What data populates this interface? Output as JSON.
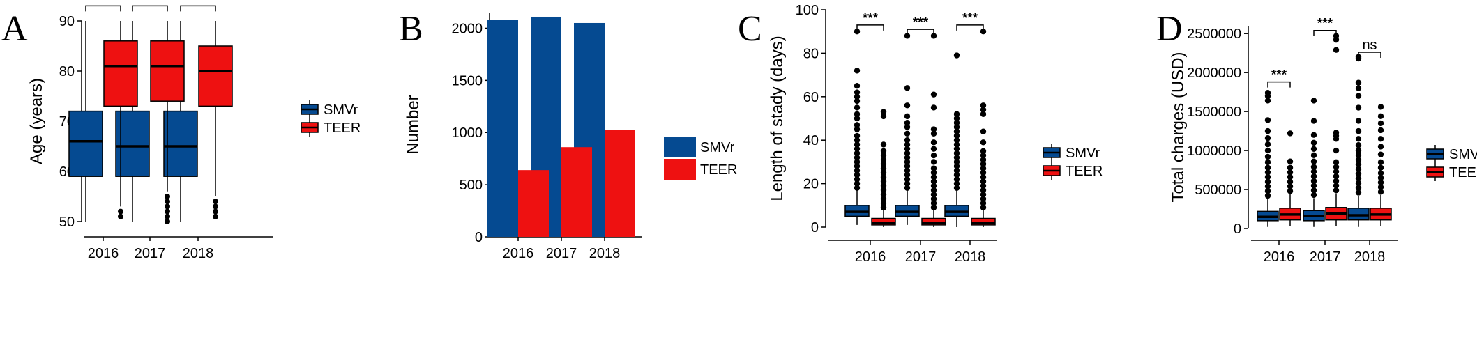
{
  "colors": {
    "SMVr": "#054a91",
    "TEER": "#ee1111"
  },
  "chart_data": [
    {
      "panel": "A",
      "type": "box",
      "ylabel": "Age (years)",
      "ylim": [
        50,
        90
      ],
      "yticks": [
        50,
        60,
        70,
        80,
        90
      ],
      "categories": [
        "2016",
        "2017",
        "2018"
      ],
      "legend": [
        "SMVr",
        "TEER"
      ],
      "series": [
        {
          "name": "SMVr",
          "boxes": [
            {
              "q1": 59,
              "median": 66,
              "q3": 72,
              "low": 50,
              "high": 90,
              "outliers": []
            },
            {
              "q1": 59,
              "median": 65,
              "q3": 72,
              "low": 50,
              "high": 90,
              "outliers": []
            },
            {
              "q1": 59,
              "median": 65,
              "q3": 72,
              "low": 50,
              "high": 90,
              "outliers": []
            }
          ]
        },
        {
          "name": "TEER",
          "boxes": [
            {
              "q1": 73,
              "median": 81,
              "q3": 86,
              "low": 53,
              "high": 90,
              "outliers": [
                51,
                52
              ]
            },
            {
              "q1": 74,
              "median": 81,
              "q3": 86,
              "low": 56,
              "high": 90,
              "outliers": [
                50,
                51,
                52,
                53,
                54,
                55
              ]
            },
            {
              "q1": 73,
              "median": 80,
              "q3": 85,
              "low": 55,
              "high": 90,
              "outliers": [
                51,
                52,
                53,
                54
              ]
            }
          ]
        }
      ],
      "annotations": [
        {
          "category": 0,
          "y": 93,
          "text": "***"
        },
        {
          "category": 1,
          "y": 93,
          "text": "***"
        },
        {
          "category": 2,
          "y": 93,
          "text": "***"
        }
      ]
    },
    {
      "panel": "B",
      "type": "bar",
      "ylabel": "Number",
      "ylim": [
        0,
        2150
      ],
      "yticks": [
        0,
        500,
        1000,
        1500,
        2000
      ],
      "categories": [
        "2016",
        "2017",
        "2018"
      ],
      "legend": [
        "SMVr",
        "TEER"
      ],
      "series": [
        {
          "name": "SMVr",
          "values": [
            2080,
            2110,
            2050
          ]
        },
        {
          "name": "TEER",
          "values": [
            640,
            860,
            1025
          ]
        }
      ]
    },
    {
      "panel": "C",
      "type": "box",
      "ylabel": "Length of stady (days)",
      "ylim": [
        0,
        100
      ],
      "yticks": [
        0,
        20,
        40,
        60,
        80,
        100
      ],
      "categories": [
        "2016",
        "2017",
        "2018"
      ],
      "legend": [
        "SMVr",
        "TEER"
      ],
      "series": [
        {
          "name": "SMVr",
          "boxes": [
            {
              "q1": 5,
              "median": 7,
              "q3": 10,
              "low": 1,
              "high": 17,
              "outliers": [
                18,
                20,
                22,
                24,
                26,
                28,
                30,
                32,
                34,
                36,
                38,
                40,
                42,
                45,
                47,
                50,
                52,
                55,
                58,
                60,
                62,
                65,
                72,
                90
              ]
            },
            {
              "q1": 5,
              "median": 7,
              "q3": 10,
              "low": 1,
              "high": 17,
              "outliers": [
                18,
                20,
                22,
                24,
                26,
                28,
                30,
                32,
                34,
                36,
                38,
                40,
                43,
                46,
                48,
                51,
                56,
                64,
                88
              ]
            },
            {
              "q1": 5,
              "median": 7,
              "q3": 10,
              "low": 0,
              "high": 17,
              "outliers": [
                18,
                20,
                22,
                24,
                26,
                28,
                30,
                32,
                34,
                36,
                38,
                40,
                42,
                44,
                46,
                48,
                50,
                52,
                79
              ]
            }
          ]
        },
        {
          "name": "TEER",
          "boxes": [
            {
              "q1": 1,
              "median": 2,
              "q3": 4,
              "low": 0,
              "high": 8,
              "outliers": [
                9,
                11,
                13,
                15,
                17,
                19,
                21,
                23,
                25,
                27,
                29,
                31,
                33,
                35,
                38,
                51,
                53
              ]
            },
            {
              "q1": 1,
              "median": 2,
              "q3": 4,
              "low": 0,
              "high": 8,
              "outliers": [
                9,
                11,
                13,
                15,
                17,
                19,
                21,
                23,
                25,
                27,
                30,
                33,
                36,
                39,
                43,
                45,
                55,
                61,
                88
              ]
            },
            {
              "q1": 1,
              "median": 2,
              "q3": 4,
              "low": 0,
              "high": 8,
              "outliers": [
                9,
                11,
                13,
                15,
                17,
                19,
                21,
                23,
                25,
                27,
                29,
                31,
                33,
                35,
                39,
                44,
                52,
                54,
                56,
                90
              ]
            }
          ]
        }
      ],
      "annotations": [
        {
          "category": 0,
          "y": 93,
          "text": "***"
        },
        {
          "category": 1,
          "y": 91,
          "text": "***"
        },
        {
          "category": 2,
          "y": 93,
          "text": "***"
        }
      ]
    },
    {
      "panel": "D",
      "type": "box",
      "ylabel": "Total charges (USD)",
      "ylim": [
        0,
        2600000
      ],
      "yticks": [
        0,
        500000,
        1000000,
        1500000,
        2000000,
        2500000
      ],
      "categories": [
        "2016",
        "2017",
        "2018"
      ],
      "legend": [
        "SMVr",
        "TEER"
      ],
      "series": [
        {
          "name": "SMVr",
          "boxes": [
            {
              "q1": 100000,
              "median": 150000,
              "q3": 220000,
              "low": 20000,
              "high": 380000,
              "outliers": [
                420000,
                480000,
                540000,
                600000,
                660000,
                720000,
                780000,
                850000,
                920000,
                1000000,
                1080000,
                1160000,
                1250000,
                1390000,
                1640000,
                1700000,
                1740000
              ]
            },
            {
              "q1": 100000,
              "median": 160000,
              "q3": 230000,
              "low": 20000,
              "high": 390000,
              "outliers": [
                430000,
                490000,
                550000,
                610000,
                670000,
                730000,
                790000,
                860000,
                940000,
                1020000,
                1100000,
                1200000,
                1380000,
                1640000
              ]
            },
            {
              "q1": 110000,
              "median": 170000,
              "q3": 260000,
              "low": 20000,
              "high": 420000,
              "outliers": [
                460000,
                520000,
                580000,
                640000,
                700000,
                760000,
                820000,
                880000,
                940000,
                1000000,
                1070000,
                1150000,
                1250000,
                1380000,
                1550000,
                1700000,
                1800000,
                1870000,
                2180000,
                2200000
              ]
            }
          ]
        },
        {
          "name": "TEER",
          "boxes": [
            {
              "q1": 110000,
              "median": 180000,
              "q3": 260000,
              "low": 30000,
              "high": 440000,
              "outliers": [
                480000,
                540000,
                600000,
                660000,
                720000,
                780000,
                860000,
                1220000
              ]
            },
            {
              "q1": 110000,
              "median": 190000,
              "q3": 270000,
              "low": 30000,
              "high": 450000,
              "outliers": [
                490000,
                550000,
                610000,
                670000,
                730000,
                790000,
                850000,
                1000000,
                1150000,
                1190000,
                1230000,
                2290000,
                2420000,
                2470000
              ]
            },
            {
              "q1": 110000,
              "median": 180000,
              "q3": 260000,
              "low": 30000,
              "high": 430000,
              "outliers": [
                470000,
                530000,
                590000,
                650000,
                710000,
                780000,
                850000,
                950000,
                1050000,
                1150000,
                1260000,
                1350000,
                1440000,
                1560000
              ]
            }
          ]
        }
      ],
      "annotations": [
        {
          "category": 0,
          "y": 1880000,
          "text": "***"
        },
        {
          "category": 1,
          "y": 2540000,
          "text": "***"
        },
        {
          "category": 2,
          "y": 2260000,
          "text": "ns"
        }
      ]
    }
  ]
}
